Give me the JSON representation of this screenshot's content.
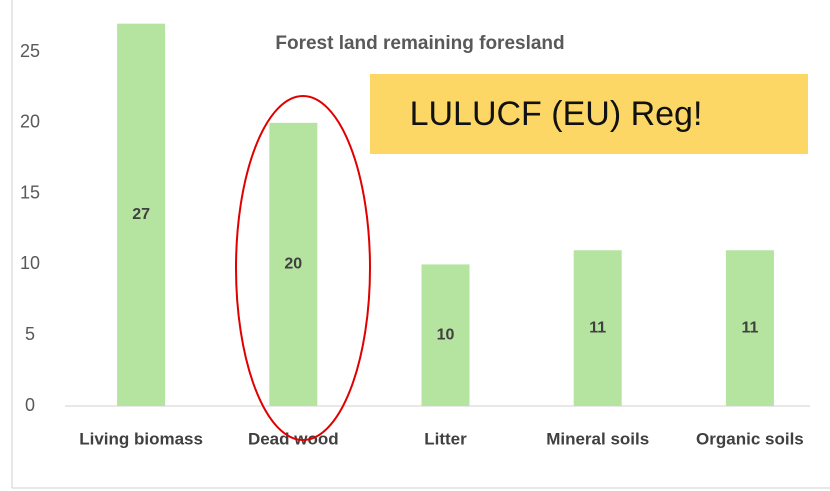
{
  "chart_data": {
    "type": "bar",
    "title": "Forest land remaining foresland",
    "annotation": "LULUCF (EU) Reg!",
    "categories": [
      "Living biomass",
      "Dead wood",
      "Litter",
      "Mineral soils",
      "Organic soils"
    ],
    "values": [
      27,
      20,
      10,
      11,
      11
    ],
    "color": "#b5e4a0",
    "ylim": [
      0,
      25
    ],
    "yticks": [
      0,
      5,
      10,
      15,
      20,
      25
    ],
    "grid": false
  }
}
